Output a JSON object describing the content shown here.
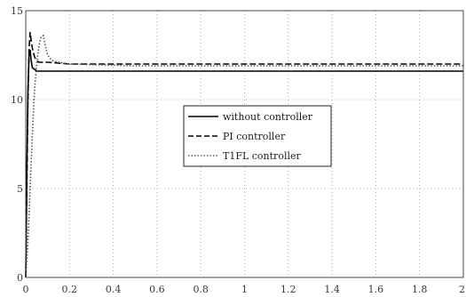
{
  "chart_data": {
    "type": "line",
    "title": "",
    "xlabel": "",
    "ylabel": "",
    "xlim": [
      0,
      2
    ],
    "ylim": [
      0,
      15
    ],
    "grid": true,
    "legend_placement": "center",
    "xticks": [
      "0",
      "0.2",
      "0.4",
      "0.6",
      "0.8",
      "1",
      "1.2",
      "1.4",
      "1.6",
      "1.8",
      "2"
    ],
    "yticks": [
      "0",
      "5",
      "10",
      "15"
    ],
    "series": [
      {
        "name": "without controller",
        "color": "#000000",
        "dash": "solid",
        "x": [
          0,
          0.005,
          0.01,
          0.015,
          0.02,
          0.025,
          0.03,
          0.04,
          0.05,
          0.07,
          0.1,
          0.2,
          0.5,
          1.0,
          1.5,
          2.0
        ],
        "y": [
          0,
          6.0,
          10.5,
          12.4,
          12.8,
          12.2,
          11.8,
          11.7,
          11.6,
          11.6,
          11.6,
          11.6,
          11.6,
          11.6,
          11.6,
          11.6
        ]
      },
      {
        "name": "PI controller",
        "color": "#000000",
        "dash": "dashed",
        "x": [
          0,
          0.005,
          0.01,
          0.015,
          0.02,
          0.025,
          0.03,
          0.04,
          0.05,
          0.06,
          0.08,
          0.1,
          0.15,
          0.2,
          0.5,
          1.0,
          1.5,
          2.0
        ],
        "y": [
          0,
          5.0,
          10.0,
          12.8,
          13.8,
          13.3,
          12.9,
          12.4,
          12.2,
          12.1,
          12.1,
          12.1,
          12.05,
          12.0,
          12.0,
          12.0,
          12.0,
          12.0
        ]
      },
      {
        "name": "T1FL controller",
        "color": "#555555",
        "dash": "dotted",
        "x": [
          0,
          0.01,
          0.02,
          0.03,
          0.04,
          0.05,
          0.06,
          0.07,
          0.08,
          0.09,
          0.1,
          0.12,
          0.15,
          0.2,
          0.5,
          1.0,
          1.5,
          2.0
        ],
        "y": [
          0,
          2.0,
          5.0,
          8.0,
          10.5,
          12.0,
          13.0,
          13.5,
          13.6,
          13.0,
          12.5,
          12.2,
          12.1,
          12.0,
          11.9,
          11.9,
          11.9,
          11.9
        ]
      }
    ]
  },
  "legend": {
    "items": [
      {
        "label": "without controller",
        "key": "without-controller"
      },
      {
        "label": "PI controller",
        "key": "pi-controller"
      },
      {
        "label": "T1FL controller",
        "key": "t1fl-controller"
      }
    ]
  }
}
